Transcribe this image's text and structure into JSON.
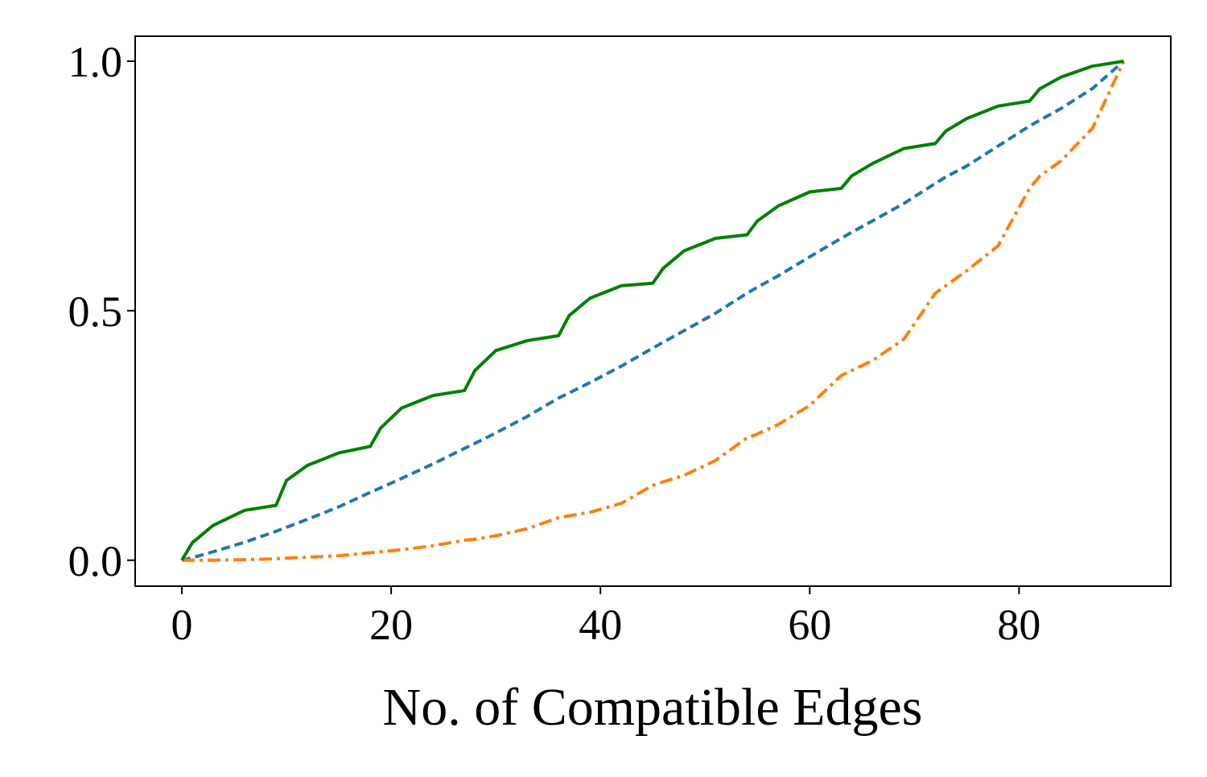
{
  "chart_data": {
    "type": "line",
    "x_label": "No. of Compatible Edges",
    "x": [
      0,
      1,
      3,
      6,
      9,
      10,
      12,
      15,
      18,
      19,
      21,
      24,
      27,
      28,
      30,
      33,
      36,
      37,
      39,
      42,
      45,
      46,
      48,
      51,
      54,
      55,
      57,
      60,
      63,
      64,
      66,
      69,
      72,
      73,
      75,
      78,
      81,
      82,
      84,
      87,
      90
    ],
    "series": [
      {
        "color": "#1f77b4",
        "linestyle": "dashed",
        "values": [
          0,
          0.005,
          0.017,
          0.036,
          0.058,
          0.066,
          0.082,
          0.107,
          0.136,
          0.145,
          0.164,
          0.193,
          0.224,
          0.234,
          0.255,
          0.288,
          0.325,
          0.335,
          0.356,
          0.389,
          0.425,
          0.437,
          0.46,
          0.495,
          0.535,
          0.547,
          0.57,
          0.608,
          0.645,
          0.657,
          0.68,
          0.715,
          0.755,
          0.768,
          0.79,
          0.83,
          0.87,
          0.882,
          0.905,
          0.945,
          1.0
        ]
      },
      {
        "color": "#ff7f0e",
        "linestyle": "dashdot",
        "values": [
          0,
          0,
          0,
          0.001,
          0.003,
          0.004,
          0.006,
          0.009,
          0.015,
          0.017,
          0.021,
          0.029,
          0.04,
          0.042,
          0.049,
          0.063,
          0.085,
          0.089,
          0.096,
          0.114,
          0.15,
          0.157,
          0.17,
          0.2,
          0.245,
          0.253,
          0.272,
          0.31,
          0.37,
          0.38,
          0.4,
          0.443,
          0.535,
          0.55,
          0.58,
          0.63,
          0.745,
          0.77,
          0.8,
          0.865,
          1.0
        ]
      },
      {
        "color": "#008000",
        "linestyle": "solid",
        "values": [
          0,
          0.035,
          0.07,
          0.1,
          0.11,
          0.16,
          0.19,
          0.215,
          0.228,
          0.265,
          0.305,
          0.33,
          0.34,
          0.38,
          0.42,
          0.44,
          0.45,
          0.49,
          0.525,
          0.55,
          0.555,
          0.585,
          0.62,
          0.645,
          0.652,
          0.68,
          0.71,
          0.738,
          0.745,
          0.77,
          0.795,
          0.825,
          0.835,
          0.86,
          0.885,
          0.91,
          0.92,
          0.945,
          0.968,
          0.99,
          1.0
        ]
      }
    ],
    "xlim": [
      -4.46,
      94.5
    ],
    "ylim": [
      -0.052,
      1.05
    ],
    "xticks": [
      0,
      20,
      40,
      60,
      80
    ],
    "yticks": [
      {
        "value": 0,
        "label": "0.0"
      },
      {
        "value": 0.5,
        "label": "0.5"
      },
      {
        "value": 1,
        "label": "1.0"
      }
    ],
    "grid": false
  }
}
